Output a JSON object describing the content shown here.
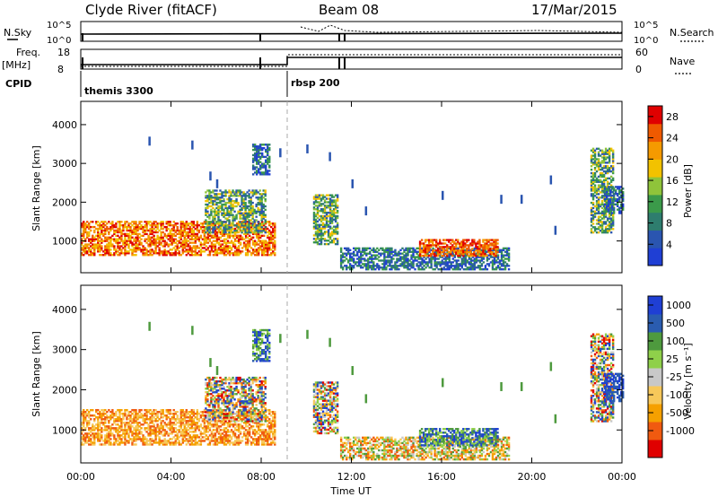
{
  "header": {
    "station": "Clyde River (fitACF)",
    "beam": "Beam 08",
    "date": "17/Mar/2015"
  },
  "summary": {
    "nsky_label": "N.Sky",
    "nsky_ticks": [
      "10^5",
      "10^0"
    ],
    "nsearch_label": "N.Search",
    "nsearch_ticks": [
      "10^5",
      "10^0"
    ],
    "freq_label": "Freq.",
    "freq_unit": "[MHz]",
    "freq_ticks": [
      "18",
      "8"
    ],
    "nave_label": "Nave",
    "nave_ticks": [
      "60",
      "0"
    ],
    "cpid_label": "CPID",
    "cpid_segments": [
      "themis 3300",
      "rbsp 200"
    ]
  },
  "colors": {
    "power": [
      "#1f3fd4",
      "#2a55b0",
      "#2e7d6e",
      "#3b9a4a",
      "#8fc43a",
      "#f2c200",
      "#f59a00",
      "#ef5a00",
      "#e00000"
    ],
    "velocity": [
      "#e00000",
      "#f05a10",
      "#f5a000",
      "#f7c85a",
      "#c8c8c8",
      "#8fd04a",
      "#4e9a3e",
      "#2a5cb0",
      "#1f3fd4"
    ],
    "cpid_line": "#000000"
  },
  "chart_data": [
    {
      "type": "heatmap",
      "title": "Power",
      "xlabel": "Time UT",
      "ylabel": "Slant Range [km]",
      "x_ticks": [
        "00:00",
        "04:00",
        "08:00",
        "12:00",
        "16:00",
        "20:00",
        "00:00"
      ],
      "x_range_hours": [
        0,
        24
      ],
      "y_ticks": [
        "1000",
        "2000",
        "3000",
        "4000"
      ],
      "ylim": [
        180,
        4600
      ],
      "colorbar_label": "Power [dB]",
      "colorbar_ticks": [
        "4",
        "8",
        "12",
        "16",
        "20",
        "24",
        "28"
      ],
      "colorbar_range": [
        0,
        30
      ],
      "cpid_change_hour": 9.1
    },
    {
      "type": "heatmap",
      "title": "Velocity",
      "xlabel": "Time UT",
      "ylabel": "Slant Range [km]",
      "x_ticks": [
        "00:00",
        "04:00",
        "08:00",
        "12:00",
        "16:00",
        "20:00",
        "00:00"
      ],
      "x_range_hours": [
        0,
        24
      ],
      "y_ticks": [
        "1000",
        "2000",
        "3000",
        "4000"
      ],
      "ylim": [
        180,
        4600
      ],
      "colorbar_label": "Velocity [m s⁻¹]",
      "colorbar_ticks": [
        "1000",
        "500",
        "100",
        "25",
        "-25",
        "-100",
        "-500",
        "-1000"
      ],
      "cpid_change_hour": 9.1
    }
  ]
}
